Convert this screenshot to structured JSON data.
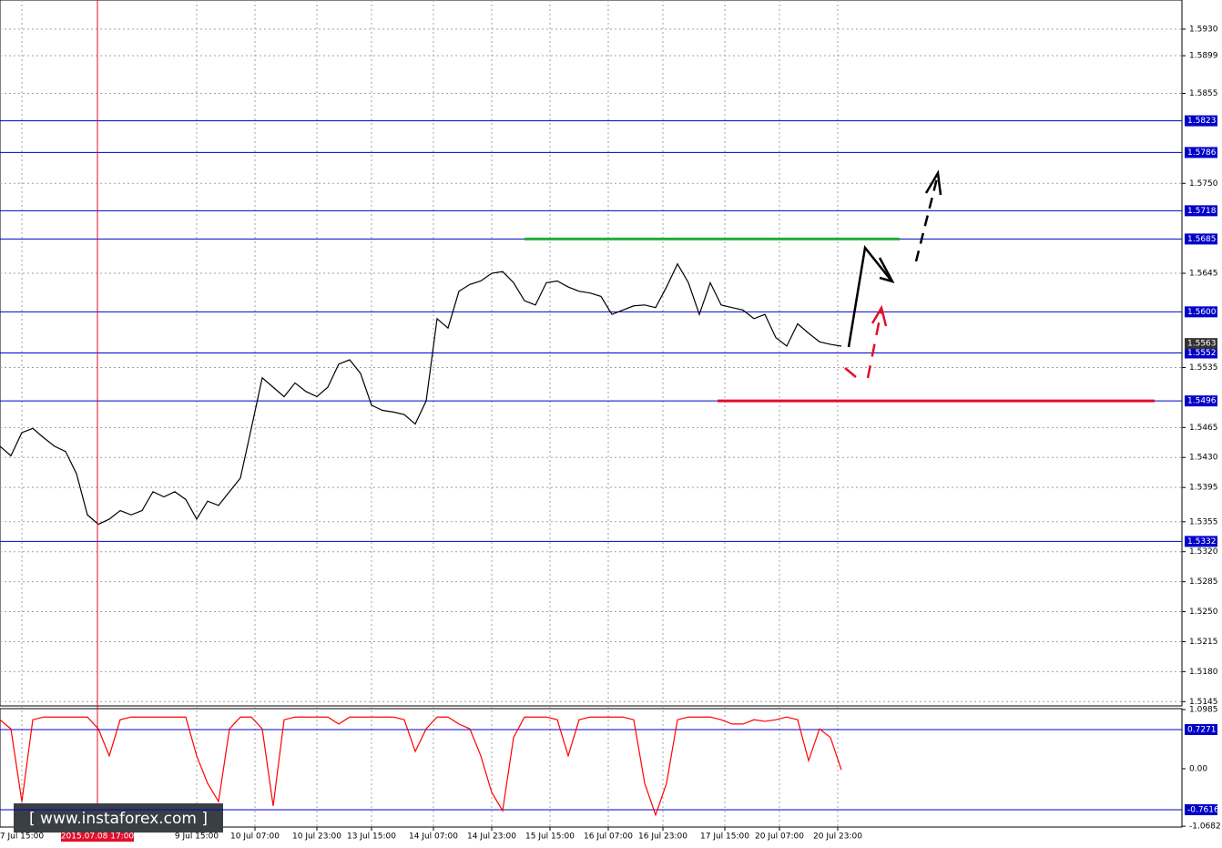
{
  "chart_data": [
    {
      "type": "line",
      "color": "#000000",
      "grid": true,
      "level_color": "#0000c8",
      "xlim": [
        0,
        324.5
      ],
      "ylim": [
        1.514,
        1.5964
      ],
      "x": [
        0,
        3,
        6,
        9,
        12,
        15,
        18,
        21,
        24,
        27,
        30,
        33,
        36,
        39,
        42,
        45,
        48,
        51,
        54,
        57,
        60,
        63,
        66,
        69,
        72,
        75,
        78,
        81,
        84,
        87,
        90,
        93,
        96,
        99,
        102,
        105,
        108,
        111,
        114,
        117,
        120,
        123,
        126,
        129,
        132,
        135,
        138,
        141,
        144,
        147,
        150,
        153,
        156,
        159,
        162,
        165,
        168,
        171,
        174,
        177,
        180,
        183,
        186,
        189,
        192,
        195,
        198,
        201,
        204,
        207,
        210,
        213,
        216,
        219,
        222,
        225,
        228,
        231
      ],
      "values": [
        1.5443,
        1.5432,
        1.5459,
        1.5464,
        1.5453,
        1.5443,
        1.5437,
        1.5411,
        1.5363,
        1.5352,
        1.5358,
        1.5368,
        1.5363,
        1.5368,
        1.539,
        1.5384,
        1.539,
        1.5381,
        1.5358,
        1.5379,
        1.5374,
        1.539,
        1.5406,
        1.5464,
        1.5523,
        1.5512,
        1.5501,
        1.5517,
        1.5507,
        1.5501,
        1.5512,
        1.5539,
        1.5544,
        1.5528,
        1.5491,
        1.5485,
        1.5483,
        1.548,
        1.5469,
        1.5496,
        1.5592,
        1.5581,
        1.5624,
        1.5632,
        1.5636,
        1.5645,
        1.5647,
        1.5634,
        1.5613,
        1.5608,
        1.5634,
        1.5636,
        1.5629,
        1.5624,
        1.5622,
        1.5618,
        1.5597,
        1.5602,
        1.5607,
        1.5608,
        1.5605,
        1.5629,
        1.5656,
        1.5634,
        1.5597,
        1.5634,
        1.5608,
        1.5605,
        1.5602,
        1.5592,
        1.5597,
        1.557,
        1.556,
        1.5586,
        1.5575,
        1.5565,
        1.5562,
        1.556
      ],
      "yticks": [
        {
          "value": 1.593,
          "label": "1.5930"
        },
        1.5899,
        1.5855,
        {
          "value": 1.575,
          "label": "1.5750"
        },
        1.5645,
        1.5535,
        1.5465,
        {
          "value": 1.543,
          "label": "1.5430"
        },
        1.5395,
        1.5355,
        {
          "value": 1.532,
          "label": "1.5320"
        },
        1.5285,
        {
          "value": 1.525,
          "label": "1.5250"
        },
        1.5215,
        {
          "value": 1.518,
          "label": "1.5180"
        },
        1.5145
      ],
      "levels": [
        1.5823,
        1.5786,
        1.5718,
        1.5685,
        {
          "value": 1.56,
          "label": "1.5600"
        },
        1.5552,
        1.5496,
        1.5332
      ],
      "current_price": 1.5563,
      "resistance": {
        "y": 1.5685,
        "x": [
          144,
          247
        ],
        "color": "#1fae3c"
      },
      "support": {
        "y": 1.5496,
        "x": [
          197,
          317
        ],
        "color": "#e0102a"
      },
      "xticks": [
        {
          "value": 6,
          "label": "7 Jul 15:00"
        },
        {
          "value": 54,
          "label": "9 Jul 15:00"
        },
        {
          "value": 70,
          "label": "10 Jul 07:00"
        },
        {
          "value": 87,
          "label": "10 Jul 23:00"
        },
        {
          "value": 102,
          "label": "13 Jul 15:00"
        },
        {
          "value": 119,
          "label": "14 Jul 07:00"
        },
        {
          "value": 135,
          "label": "14 Jul 23:00"
        },
        {
          "value": 151,
          "label": "15 Jul 15:00"
        },
        {
          "value": 167,
          "label": "16 Jul 07:00"
        },
        {
          "value": 182,
          "label": "16 Jul 23:00"
        },
        {
          "value": 199,
          "label": "17 Jul 15:00"
        },
        {
          "value": 214,
          "label": "20 Jul 07:00"
        },
        {
          "value": 230,
          "label": "20 Jul 23:00"
        }
      ],
      "cursor": {
        "value": 26.75,
        "label": "2015.07.08 17:00",
        "color": "#e0102a"
      },
      "watermark": "[ www.instaforex.com ]"
    },
    {
      "type": "line",
      "color": "#ff0000",
      "grid": false,
      "level_color": "#0000c8",
      "xlim": [
        0,
        324.5
      ],
      "ylim": [
        -1.083,
        1.116
      ],
      "x": [
        0,
        3,
        6,
        9,
        12,
        15,
        18,
        21,
        24,
        27,
        30,
        33,
        36,
        39,
        42,
        45,
        48,
        51,
        54,
        57,
        60,
        63,
        66,
        69,
        72,
        75,
        78,
        81,
        84,
        87,
        90,
        93,
        96,
        99,
        102,
        105,
        108,
        111,
        114,
        117,
        120,
        123,
        126,
        129,
        132,
        135,
        138,
        141,
        144,
        147,
        150,
        153,
        156,
        159,
        162,
        165,
        168,
        171,
        174,
        177,
        180,
        183,
        186,
        189,
        192,
        195,
        198,
        201,
        204,
        207,
        210,
        213,
        216,
        219,
        222,
        225,
        228,
        231
      ],
      "values": [
        0.91,
        0.74,
        -0.61,
        0.91,
        0.96,
        0.96,
        0.96,
        0.96,
        0.96,
        0.74,
        0.24,
        0.91,
        0.96,
        0.96,
        0.96,
        0.96,
        0.96,
        0.96,
        0.24,
        -0.27,
        -0.61,
        0.74,
        0.96,
        0.96,
        0.74,
        -0.69,
        0.91,
        0.96,
        0.96,
        0.96,
        0.96,
        0.83,
        0.96,
        0.96,
        0.96,
        0.96,
        0.96,
        0.91,
        0.32,
        0.74,
        0.96,
        0.96,
        0.83,
        0.74,
        0.24,
        -0.44,
        -0.78,
        0.58,
        0.96,
        0.96,
        0.96,
        0.91,
        0.24,
        0.91,
        0.96,
        0.96,
        0.96,
        0.96,
        0.91,
        -0.27,
        -0.86,
        -0.27,
        0.91,
        0.96,
        0.96,
        0.96,
        0.91,
        0.83,
        0.83,
        0.91,
        0.88,
        0.91,
        0.96,
        0.91,
        0.15,
        0.74,
        0.58,
        -0.02
      ],
      "yticks": [
        1.0985,
        {
          "value": 0,
          "label": "0.00"
        },
        -1.0682
      ],
      "levels": [
        0.7271,
        -0.7616
      ]
    }
  ]
}
